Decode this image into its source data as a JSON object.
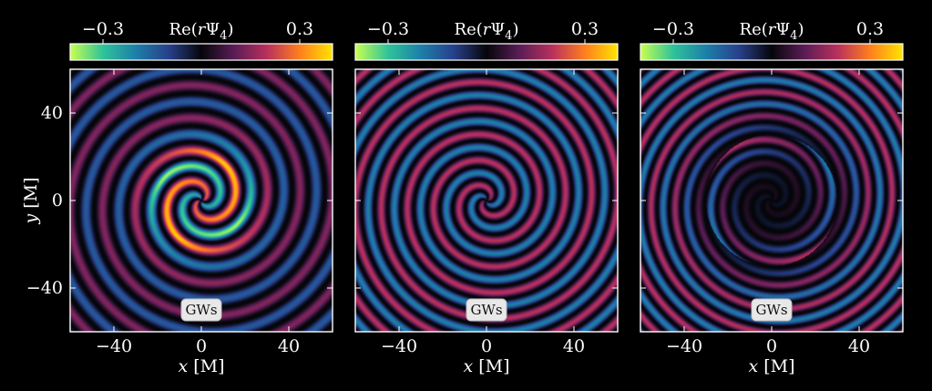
{
  "chart_data": {
    "type": "heatmap",
    "quantity_label": "Re(rΨ4)",
    "colorbar": {
      "label": "Re(rΨ4)",
      "tick_labels": [
        "−0.3",
        "0.3"
      ],
      "range": [
        -0.4,
        0.4
      ],
      "colormap": [
        "#c8ff50",
        "#2fc39a",
        "#1c7fa8",
        "#28408c",
        "#05060a",
        "#5a1d55",
        "#b8305d",
        "#ff7f1e",
        "#ffe400"
      ]
    },
    "panels": [
      {
        "id": "left",
        "badge": "GWs",
        "xlabel_var": "x",
        "xlabel_unit": "[M]",
        "ylabel_var": "y",
        "ylabel_unit": "[M]",
        "xlim": [
          -60,
          60
        ],
        "ylim": [
          -60,
          60
        ],
        "xticks": [
          -40,
          0,
          40
        ],
        "xtick_labels": [
          "−40",
          "0",
          "40"
        ],
        "yticks": [
          40,
          0,
          -40
        ],
        "ytick_labels": [
          "40",
          "0",
          "−40"
        ],
        "show_ytick_labels": true,
        "arms": 2,
        "core_radius": 20,
        "core_amplitude": 0.38,
        "outer_amplitude": 0.14,
        "wavelength": 15
      },
      {
        "id": "middle",
        "badge": "GWs",
        "xlabel_var": "x",
        "xlabel_unit": "[M]",
        "xlim": [
          -60,
          60
        ],
        "ylim": [
          -60,
          60
        ],
        "xticks": [
          -40,
          0,
          40
        ],
        "xtick_labels": [
          "−40",
          "0",
          "40"
        ],
        "yticks": [
          40,
          0,
          -40
        ],
        "show_ytick_labels": false,
        "arms": 2,
        "core_radius": 5,
        "core_amplitude": 0.2,
        "outer_amplitude": 0.2,
        "wavelength": 12
      },
      {
        "id": "right",
        "badge": "GWs",
        "xlabel_var": "x",
        "xlabel_unit": "[M]",
        "xlim": [
          -60,
          60
        ],
        "ylim": [
          -60,
          60
        ],
        "xticks": [
          -40,
          0,
          40
        ],
        "xtick_labels": [
          "−40",
          "0",
          "40"
        ],
        "yticks": [
          40,
          0,
          -40
        ],
        "show_ytick_labels": false,
        "arms": 2,
        "core_radius": 30,
        "core_amplitude": 0.02,
        "outer_amplitude": 0.2,
        "wavelength": 11
      }
    ]
  }
}
